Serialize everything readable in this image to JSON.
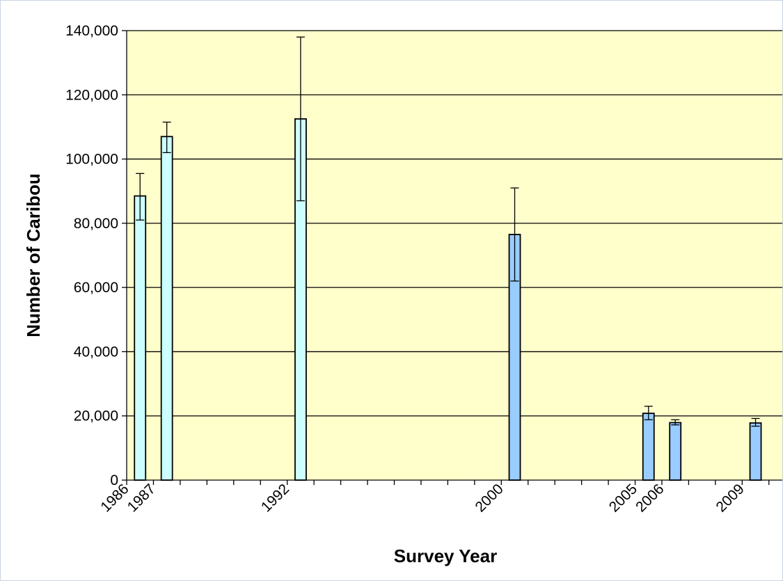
{
  "chart_data": {
    "type": "bar",
    "title": "",
    "xlabel": "Survey Year",
    "ylabel": "Number of Caribou",
    "ylim": [
      0,
      140000
    ],
    "xlim": [
      1986,
      2010.5
    ],
    "yticks": [
      0,
      20000,
      40000,
      60000,
      80000,
      100000,
      120000,
      140000
    ],
    "ytick_labels": [
      "0",
      "20,000",
      "40,000",
      "60,000",
      "80,000",
      "100,000",
      "120,000",
      "140,000"
    ],
    "xtick_labels": [
      {
        "year": 1986,
        "label": "1986"
      },
      {
        "year": 1987,
        "label": "1987"
      },
      {
        "year": 1992,
        "label": "1992"
      },
      {
        "year": 2000,
        "label": "2000"
      },
      {
        "year": 2005,
        "label": "2005"
      },
      {
        "year": 2006,
        "label": "2006"
      },
      {
        "year": 2009,
        "label": "2009"
      }
    ],
    "grid": true,
    "legend": "none",
    "plot_background": "#ffffcc",
    "bars": [
      {
        "x": 1986.5,
        "value": 88500,
        "err_low": 81000,
        "err_high": 95500,
        "color": "#ccffff"
      },
      {
        "x": 1987.5,
        "value": 107000,
        "err_low": 102000,
        "err_high": 111500,
        "color": "#ccffff"
      },
      {
        "x": 1992.5,
        "value": 112500,
        "err_low": 87000,
        "err_high": 138000,
        "color": "#ccffff"
      },
      {
        "x": 2000.5,
        "value": 76500,
        "err_low": 62000,
        "err_high": 91000,
        "color": "#99ccff"
      },
      {
        "x": 2005.5,
        "value": 20800,
        "err_low": 18800,
        "err_high": 23000,
        "color": "#99ccff"
      },
      {
        "x": 2006.5,
        "value": 17900,
        "err_low": 17200,
        "err_high": 18800,
        "color": "#99ccff"
      },
      {
        "x": 2009.5,
        "value": 17800,
        "err_low": 16800,
        "err_high": 19200,
        "color": "#99ccff"
      }
    ]
  }
}
